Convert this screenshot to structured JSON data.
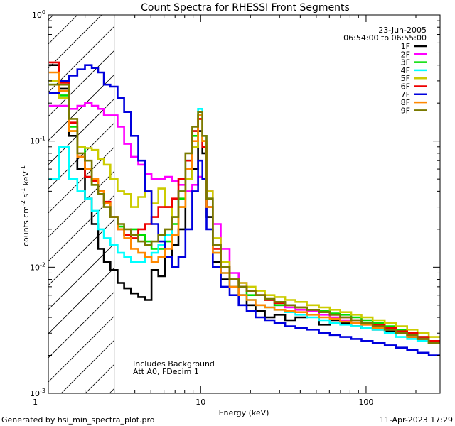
{
  "chart_data": {
    "type": "line",
    "title": "Count Spectra for RHESSI Front Segments",
    "xlabel": "Energy (keV)",
    "ylabel_main": "counts cm",
    "ylabel_exp1": "-2",
    "ylabel_mid1": " s",
    "ylabel_exp2": "-1",
    "ylabel_mid2": " keV",
    "ylabel_exp3": "-1",
    "x_scale": "log",
    "y_scale": "log",
    "xlim": [
      1.2,
      280
    ],
    "ylim": [
      0.001,
      1
    ],
    "x_ticks": [
      {
        "value": 1,
        "label": "1"
      },
      {
        "value": 10,
        "label": "10"
      },
      {
        "value": 100,
        "label": "100"
      }
    ],
    "y_ticks": [
      {
        "value": 1,
        "base": "10",
        "exp": "0"
      },
      {
        "value": 0.1,
        "base": "10",
        "exp": "-1"
      },
      {
        "value": 0.01,
        "base": "10",
        "exp": "-2"
      },
      {
        "value": 0.001,
        "base": "10",
        "exp": "-3"
      }
    ],
    "date": "23-Jun-2005",
    "time_range": "06:54:00 to 06:55:00",
    "annotation_line1": "Includes Background",
    "annotation_line2": "Att A0, FDecim 1",
    "attenuator_cutoff_kev": 3,
    "footer_left": "Generated by hsi_min_spectra_plot.pro",
    "footer_right": "11-Apr-2023 17:29",
    "series": [
      {
        "name": "1F",
        "color": "#000000",
        "x": [
          1.3,
          1.5,
          1.7,
          1.9,
          2.1,
          2.3,
          2.5,
          2.7,
          3.0,
          3.3,
          3.6,
          4.0,
          4.4,
          4.8,
          5.3,
          5.8,
          6.4,
          7.0,
          7.7,
          8.5,
          9.3,
          10.0,
          10.5,
          11.2,
          12.5,
          14,
          16,
          18,
          20,
          23,
          26,
          30,
          35,
          40,
          48,
          56,
          65,
          75,
          88,
          100,
          120,
          140,
          165,
          190,
          220,
          260
        ],
        "values": [
          0.4,
          0.26,
          0.11,
          0.06,
          0.035,
          0.022,
          0.014,
          0.011,
          0.0095,
          0.0075,
          0.0068,
          0.0062,
          0.0058,
          0.0055,
          0.0095,
          0.0085,
          0.012,
          0.015,
          0.02,
          0.05,
          0.06,
          0.12,
          0.08,
          0.025,
          0.011,
          0.008,
          0.007,
          0.006,
          0.005,
          0.0045,
          0.004,
          0.0042,
          0.0038,
          0.004,
          0.0045,
          0.0035,
          0.0038,
          0.0036,
          0.0034,
          0.0033,
          0.0032,
          0.0031,
          0.003,
          0.0028,
          0.0027,
          0.0025
        ]
      },
      {
        "name": "2F",
        "color": "#ff00ff",
        "x": [
          1.3,
          1.5,
          1.7,
          1.9,
          2.1,
          2.3,
          2.5,
          2.7,
          3.0,
          3.3,
          3.6,
          4.0,
          4.4,
          4.8,
          5.3,
          5.8,
          6.4,
          7.0,
          7.7,
          8.5,
          9.3,
          10.0,
          10.5,
          11.2,
          12.5,
          14,
          16,
          18,
          20,
          23,
          26,
          30,
          35,
          40,
          48,
          56,
          65,
          75,
          88,
          100,
          120,
          140,
          165,
          190,
          220,
          260
        ],
        "values": [
          0.19,
          0.19,
          0.18,
          0.19,
          0.2,
          0.19,
          0.18,
          0.16,
          0.16,
          0.13,
          0.095,
          0.075,
          0.065,
          0.055,
          0.05,
          0.05,
          0.052,
          0.048,
          0.045,
          0.04,
          0.045,
          0.052,
          0.05,
          0.04,
          0.022,
          0.014,
          0.009,
          0.0075,
          0.0065,
          0.006,
          0.0055,
          0.005,
          0.0048,
          0.0046,
          0.0045,
          0.0042,
          0.004,
          0.0038,
          0.0036,
          0.0035,
          0.0034,
          0.0032,
          0.003,
          0.0029,
          0.0027,
          0.0026
        ]
      },
      {
        "name": "3F",
        "color": "#00dd00",
        "x": [
          1.3,
          1.5,
          1.7,
          1.9,
          2.1,
          2.3,
          2.5,
          2.7,
          3.0,
          3.3,
          3.6,
          4.0,
          4.4,
          4.8,
          5.3,
          5.8,
          6.4,
          7.0,
          7.7,
          8.5,
          9.3,
          10.0,
          10.5,
          11.2,
          12.5,
          14,
          16,
          18,
          20,
          23,
          26,
          30,
          35,
          40,
          48,
          56,
          65,
          75,
          88,
          100,
          120,
          140,
          165,
          190,
          220,
          260
        ],
        "values": [
          0.28,
          0.23,
          0.13,
          0.09,
          0.06,
          0.045,
          0.038,
          0.032,
          0.025,
          0.021,
          0.018,
          0.02,
          0.018,
          0.016,
          0.014,
          0.014,
          0.016,
          0.022,
          0.035,
          0.06,
          0.11,
          0.16,
          0.1,
          0.035,
          0.015,
          0.01,
          0.008,
          0.007,
          0.006,
          0.006,
          0.0055,
          0.005,
          0.005,
          0.0048,
          0.0046,
          0.0045,
          0.0043,
          0.0042,
          0.004,
          0.0038,
          0.0036,
          0.0034,
          0.0032,
          0.003,
          0.0028,
          0.0026
        ]
      },
      {
        "name": "4F",
        "color": "#00ffff",
        "x": [
          1.3,
          1.5,
          1.7,
          1.9,
          2.1,
          2.3,
          2.5,
          2.7,
          3.0,
          3.3,
          3.6,
          4.0,
          4.4,
          4.8,
          5.3,
          5.8,
          6.4,
          7.0,
          7.7,
          8.5,
          9.3,
          10.0,
          10.5,
          11.2,
          12.5,
          14,
          16,
          18,
          20,
          23,
          26,
          30,
          35,
          40,
          48,
          56,
          65,
          75,
          88,
          100,
          120,
          140,
          165,
          190,
          220,
          260
        ],
        "values": [
          0.05,
          0.09,
          0.05,
          0.04,
          0.035,
          0.028,
          0.02,
          0.017,
          0.015,
          0.013,
          0.012,
          0.011,
          0.011,
          0.012,
          0.013,
          0.015,
          0.018,
          0.025,
          0.04,
          0.07,
          0.12,
          0.18,
          0.11,
          0.03,
          0.013,
          0.009,
          0.007,
          0.006,
          0.0055,
          0.005,
          0.0048,
          0.0046,
          0.0044,
          0.0042,
          0.004,
          0.0038,
          0.0036,
          0.0035,
          0.0034,
          0.0033,
          0.0032,
          0.003,
          0.0028,
          0.0027,
          0.0026,
          0.0025
        ]
      },
      {
        "name": "5F",
        "color": "#cccc00",
        "x": [
          1.3,
          1.5,
          1.7,
          1.9,
          2.1,
          2.3,
          2.5,
          2.7,
          3.0,
          3.3,
          3.6,
          4.0,
          4.4,
          4.8,
          5.3,
          5.8,
          6.4,
          7.0,
          7.7,
          8.5,
          9.3,
          10.0,
          10.5,
          11.2,
          12.5,
          14,
          16,
          18,
          20,
          23,
          26,
          30,
          35,
          40,
          48,
          56,
          65,
          75,
          88,
          100,
          120,
          140,
          165,
          190,
          220,
          260
        ],
        "values": [
          0.3,
          0.22,
          0.12,
          0.09,
          0.088,
          0.085,
          0.072,
          0.065,
          0.05,
          0.04,
          0.038,
          0.03,
          0.036,
          0.04,
          0.032,
          0.042,
          0.03,
          0.025,
          0.03,
          0.05,
          0.09,
          0.15,
          0.1,
          0.04,
          0.017,
          0.011,
          0.008,
          0.0075,
          0.007,
          0.0065,
          0.006,
          0.0058,
          0.0055,
          0.0053,
          0.005,
          0.0048,
          0.0046,
          0.0044,
          0.0042,
          0.004,
          0.0038,
          0.0036,
          0.0034,
          0.0032,
          0.003,
          0.0028
        ]
      },
      {
        "name": "6F",
        "color": "#ee0000",
        "x": [
          1.3,
          1.5,
          1.7,
          1.9,
          2.1,
          2.3,
          2.5,
          2.7,
          3.0,
          3.3,
          3.6,
          4.0,
          4.4,
          4.8,
          5.3,
          5.8,
          6.4,
          7.0,
          7.7,
          8.5,
          9.3,
          10.0,
          10.5,
          11.2,
          12.5,
          14,
          16,
          18,
          20,
          23,
          26,
          30,
          35,
          40,
          48,
          56,
          65,
          75,
          88,
          100,
          120,
          140,
          165,
          190,
          220,
          260
        ],
        "values": [
          0.42,
          0.29,
          0.14,
          0.075,
          0.052,
          0.048,
          0.04,
          0.033,
          0.025,
          0.02,
          0.018,
          0.017,
          0.02,
          0.022,
          0.025,
          0.03,
          0.03,
          0.035,
          0.05,
          0.07,
          0.12,
          0.15,
          0.09,
          0.03,
          0.014,
          0.01,
          0.008,
          0.007,
          0.0065,
          0.006,
          0.0055,
          0.0052,
          0.005,
          0.0048,
          0.0046,
          0.0044,
          0.0042,
          0.004,
          0.0038,
          0.0036,
          0.0035,
          0.0033,
          0.0031,
          0.003,
          0.0028,
          0.0026
        ]
      },
      {
        "name": "7F",
        "color": "#0000dd",
        "x": [
          1.3,
          1.5,
          1.7,
          1.9,
          2.1,
          2.3,
          2.5,
          2.7,
          3.0,
          3.3,
          3.6,
          4.0,
          4.4,
          4.8,
          5.3,
          5.8,
          6.4,
          7.0,
          7.7,
          8.5,
          9.3,
          10.0,
          10.5,
          11.2,
          12.5,
          14,
          16,
          18,
          20,
          23,
          26,
          30,
          35,
          40,
          48,
          56,
          65,
          75,
          88,
          100,
          120,
          140,
          165,
          190,
          220,
          260
        ],
        "values": [
          0.24,
          0.3,
          0.33,
          0.37,
          0.4,
          0.38,
          0.35,
          0.28,
          0.27,
          0.22,
          0.17,
          0.11,
          0.07,
          0.04,
          0.022,
          0.016,
          0.012,
          0.01,
          0.012,
          0.02,
          0.04,
          0.07,
          0.05,
          0.02,
          0.01,
          0.007,
          0.006,
          0.005,
          0.0045,
          0.004,
          0.0038,
          0.0036,
          0.0034,
          0.0033,
          0.0032,
          0.003,
          0.0029,
          0.0028,
          0.0027,
          0.0026,
          0.0025,
          0.0024,
          0.0023,
          0.0022,
          0.0021,
          0.002
        ]
      },
      {
        "name": "8F",
        "color": "#ff8800",
        "x": [
          1.3,
          1.5,
          1.7,
          1.9,
          2.1,
          2.3,
          2.5,
          2.7,
          3.0,
          3.3,
          3.6,
          4.0,
          4.4,
          4.8,
          5.3,
          5.8,
          6.4,
          7.0,
          7.7,
          8.5,
          9.3,
          10.0,
          10.5,
          11.2,
          12.5,
          14,
          16,
          18,
          20,
          23,
          26,
          30,
          35,
          40,
          48,
          56,
          65,
          75,
          88,
          100,
          120,
          140,
          165,
          190,
          220,
          260
        ],
        "values": [
          0.35,
          0.25,
          0.12,
          0.075,
          0.06,
          0.05,
          0.04,
          0.032,
          0.025,
          0.02,
          0.017,
          0.014,
          0.013,
          0.012,
          0.011,
          0.012,
          0.014,
          0.018,
          0.03,
          0.06,
          0.1,
          0.16,
          0.1,
          0.03,
          0.013,
          0.009,
          0.007,
          0.006,
          0.0055,
          0.005,
          0.0048,
          0.0046,
          0.0045,
          0.0044,
          0.0042,
          0.004,
          0.0039,
          0.0037,
          0.0036,
          0.0035,
          0.0033,
          0.0032,
          0.003,
          0.0028,
          0.0027,
          0.0025
        ]
      },
      {
        "name": "9F",
        "color": "#7a7a00",
        "x": [
          1.3,
          1.5,
          1.7,
          1.9,
          2.1,
          2.3,
          2.5,
          2.7,
          3.0,
          3.3,
          3.6,
          4.0,
          4.4,
          4.8,
          5.3,
          5.8,
          6.4,
          7.0,
          7.7,
          8.5,
          9.3,
          10.0,
          10.5,
          11.2,
          12.5,
          14,
          16,
          18,
          20,
          23,
          26,
          30,
          35,
          40,
          48,
          56,
          65,
          75,
          88,
          100,
          120,
          140,
          165,
          190,
          220,
          260
        ],
        "values": [
          0.28,
          0.28,
          0.15,
          0.08,
          0.07,
          0.045,
          0.038,
          0.03,
          0.025,
          0.022,
          0.02,
          0.018,
          0.016,
          0.015,
          0.016,
          0.018,
          0.02,
          0.025,
          0.04,
          0.08,
          0.13,
          0.17,
          0.11,
          0.035,
          0.015,
          0.01,
          0.008,
          0.007,
          0.0065,
          0.006,
          0.0056,
          0.0053,
          0.005,
          0.0048,
          0.0046,
          0.0044,
          0.0042,
          0.004,
          0.0038,
          0.0036,
          0.0034,
          0.0032,
          0.003,
          0.0029,
          0.0027,
          0.0025
        ]
      }
    ]
  }
}
